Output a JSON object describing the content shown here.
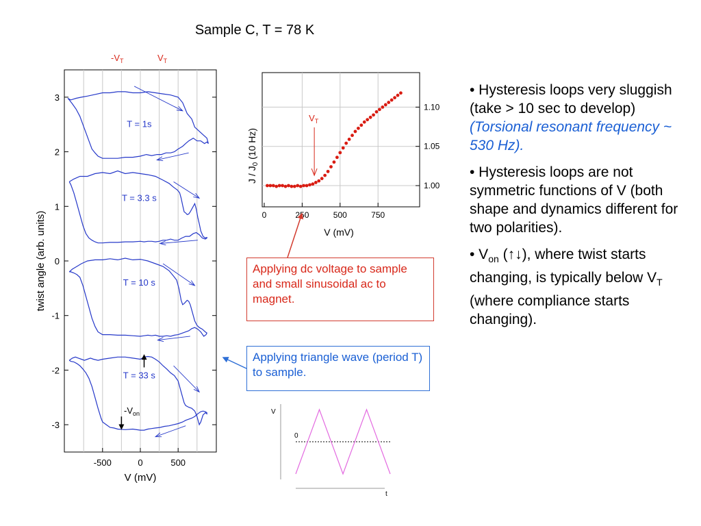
{
  "slide": {
    "title": "Sample C,  T = 78 K"
  },
  "colors": {
    "loop": "#2538c9",
    "marker": "#d91c12",
    "text_red": "#d8281a",
    "text_blue": "#1a5fd4",
    "triangle": "#e36ae0",
    "grid": "#c8c8c8"
  },
  "left_chart": {
    "xlabel": "V  (mV)",
    "ylabel": "twist angle   (arb. units)",
    "x_ticks": [
      "-500",
      "0",
      "500"
    ],
    "y_ticks": [
      "3",
      "2",
      "1",
      "0",
      "-1",
      "-2",
      "-3"
    ],
    "top_markers": {
      "neg_vt_prefix": "-V",
      "neg_vt_sub": "T",
      "vt_main": "V",
      "vt_sub": "T"
    },
    "von_main": "-V",
    "von_sub": "on"
  },
  "right_chart": {
    "xlabel": "V   (mV)",
    "ylabel_main": "J / J",
    "ylabel_sub": "0",
    "ylabel_freq": "(10 Hz)",
    "x_ticks": [
      "0",
      "250",
      "500",
      "750"
    ],
    "y_ticks": [
      "1.10",
      "1.05",
      "1.00"
    ],
    "vt_main": "V",
    "vt_sub": "T"
  },
  "triangle_chart": {
    "ylabel": "V",
    "xlabel": "t",
    "zero_label": "0"
  },
  "chart_data": [
    {
      "type": "line",
      "title": "",
      "xlabel": "V  (mV)",
      "ylabel": "twist angle   (arb. units)",
      "xlim": [
        -1000,
        1000
      ],
      "ylim": [
        -3.5,
        3.5
      ],
      "x_ticks": [
        -500,
        0,
        500
      ],
      "y_ticks": [
        -3,
        -2,
        -1,
        0,
        1,
        2,
        3
      ],
      "grid_x": [
        -750,
        -500,
        -250,
        0,
        250,
        500,
        750
      ],
      "series": [
        {
          "name": "T = 1s",
          "label_at": [
            -15,
            2.45
          ],
          "arrows": [
            {
              "from": [
                -80,
                3.2
              ],
              "to": [
                560,
                2.75
              ]
            },
            {
              "from": [
                640,
                1.98
              ],
              "to": [
                220,
                1.85
              ]
            }
          ],
          "x": [
            -960,
            -920,
            -850,
            -780,
            -700,
            -600,
            -500,
            -400,
            -300,
            -200,
            -100,
            0,
            100,
            200,
            300,
            400,
            500,
            560,
            620,
            680,
            720,
            760,
            800,
            840,
            880,
            900,
            880,
            850,
            800,
            750,
            700,
            640,
            600,
            560,
            500,
            450,
            400,
            340,
            280,
            220,
            150,
            80,
            0,
            -100,
            -200,
            -300,
            -400,
            -500,
            -560,
            -600,
            -640,
            -680,
            -720,
            -760,
            -800,
            -850,
            -900,
            -940,
            -960
          ],
          "y": [
            2.98,
            2.95,
            2.98,
            3.0,
            3.02,
            3.05,
            3.08,
            3.08,
            3.1,
            3.1,
            3.08,
            3.08,
            3.1,
            3.08,
            3.06,
            3.04,
            3.0,
            2.9,
            2.7,
            2.6,
            2.45,
            2.4,
            2.35,
            2.3,
            2.25,
            2.15,
            2.18,
            2.15,
            2.2,
            2.2,
            2.25,
            2.2,
            2.15,
            2.1,
            2.05,
            2.0,
            1.98,
            1.98,
            1.95,
            1.95,
            1.93,
            1.95,
            1.92,
            1.9,
            1.9,
            1.88,
            1.88,
            1.88,
            1.92,
            1.98,
            2.05,
            2.2,
            2.35,
            2.5,
            2.65,
            2.78,
            2.88,
            2.95,
            2.98
          ]
        },
        {
          "name": "T = 3.3 s",
          "label_at": [
            -15,
            1.1
          ],
          "arrows": [
            {
              "from": [
                440,
                1.45
              ],
              "to": [
                780,
                1.15
              ]
            },
            {
              "from": [
                760,
                0.38
              ],
              "to": [
                260,
                0.32
              ]
            }
          ],
          "x": [
            -940,
            -880,
            -800,
            -700,
            -600,
            -500,
            -400,
            -300,
            -200,
            -100,
            0,
            100,
            200,
            300,
            380,
            440,
            490,
            520,
            540,
            560,
            580,
            600,
            620,
            640,
            660,
            680,
            700,
            720,
            740,
            760,
            780,
            800,
            830,
            860,
            880,
            880,
            860,
            820,
            780,
            740,
            700,
            650,
            600,
            550,
            500,
            450,
            400,
            350,
            300,
            250,
            200,
            150,
            100,
            50,
            0,
            -100,
            -200,
            -300,
            -400,
            -500,
            -560,
            -600,
            -640,
            -680,
            -720,
            -760,
            -800,
            -840,
            -880,
            -920,
            -940
          ],
          "y": [
            1.45,
            1.5,
            1.55,
            1.55,
            1.6,
            1.62,
            1.6,
            1.65,
            1.6,
            1.62,
            1.6,
            1.58,
            1.55,
            1.48,
            1.42,
            1.35,
            1.3,
            1.25,
            1.15,
            1.02,
            0.9,
            0.88,
            0.85,
            0.86,
            0.9,
            0.95,
            1.0,
            1.05,
            0.95,
            0.8,
            0.68,
            0.55,
            0.45,
            0.42,
            0.43,
            0.42,
            0.4,
            0.42,
            0.48,
            0.52,
            0.5,
            0.45,
            0.45,
            0.42,
            0.38,
            0.38,
            0.4,
            0.38,
            0.38,
            0.36,
            0.35,
            0.36,
            0.36,
            0.35,
            0.36,
            0.35,
            0.35,
            0.34,
            0.34,
            0.33,
            0.33,
            0.35,
            0.38,
            0.42,
            0.5,
            0.65,
            0.85,
            1.05,
            1.25,
            1.4,
            1.45
          ]
        },
        {
          "name": "T = 10 s",
          "label_at": [
            -15,
            -0.45
          ],
          "arrows": [
            {
              "from": [
                300,
                -0.05
              ],
              "to": [
                720,
                -0.45
              ]
            },
            {
              "from": [
                660,
                -1.38
              ],
              "to": [
                230,
                -1.45
              ]
            }
          ],
          "x": [
            -940,
            -900,
            -840,
            -780,
            -700,
            -600,
            -500,
            -400,
            -300,
            -200,
            -100,
            0,
            100,
            200,
            300,
            380,
            440,
            480,
            510,
            540,
            560,
            580,
            600,
            620,
            640,
            660,
            680,
            700,
            720,
            750,
            780,
            820,
            860,
            880,
            870,
            840,
            800,
            760,
            720,
            680,
            640,
            600,
            560,
            500,
            450,
            400,
            350,
            300,
            250,
            200,
            150,
            100,
            50,
            0,
            -100,
            -200,
            -300,
            -400,
            -500,
            -560,
            -600,
            -640,
            -680,
            -720,
            -760,
            -800,
            -840,
            -880,
            -920,
            -940
          ],
          "y": [
            -0.2,
            -0.15,
            -0.1,
            -0.05,
            0.0,
            0.02,
            0.02,
            0.04,
            0.02,
            0.05,
            0.02,
            0.03,
            0.0,
            -0.05,
            -0.1,
            -0.18,
            -0.28,
            -0.35,
            -0.5,
            -0.72,
            -0.8,
            -0.78,
            -0.75,
            -0.72,
            -0.74,
            -0.8,
            -0.9,
            -1.0,
            -1.1,
            -1.18,
            -1.22,
            -1.25,
            -1.3,
            -1.32,
            -1.35,
            -1.38,
            -1.3,
            -1.25,
            -1.22,
            -1.24,
            -1.28,
            -1.3,
            -1.32,
            -1.35,
            -1.36,
            -1.38,
            -1.37,
            -1.38,
            -1.38,
            -1.36,
            -1.37,
            -1.36,
            -1.37,
            -1.38,
            -1.37,
            -1.36,
            -1.36,
            -1.35,
            -1.35,
            -1.3,
            -1.2,
            -1.05,
            -0.85,
            -0.65,
            -0.45,
            -0.3,
            -0.25,
            -0.22,
            -0.2,
            -0.2
          ]
        },
        {
          "name": "T = 33 s",
          "label_at": [
            -15,
            -2.15
          ],
          "arrows": [
            {
              "from": [
                440,
                -1.92
              ],
              "to": [
                780,
                -2.4
              ]
            },
            {
              "from": [
                600,
                -3.02
              ],
              "to": [
                200,
                -3.22
              ]
            }
          ],
          "x": [
            -940,
            -900,
            -860,
            -820,
            -780,
            -740,
            -700,
            -660,
            -620,
            -560,
            -500,
            -400,
            -300,
            -200,
            -100,
            0,
            50,
            100,
            150,
            200,
            250,
            300,
            350,
            400,
            450,
            500,
            530,
            560,
            580,
            600,
            640,
            680,
            720,
            750,
            780,
            800,
            830,
            860,
            880,
            880,
            860,
            830,
            800,
            760,
            720,
            680,
            640,
            600,
            560,
            500,
            440,
            380,
            320,
            260,
            200,
            150,
            100,
            50,
            0,
            -100,
            -200,
            -300,
            -350,
            -400,
            -450,
            -500,
            -520,
            -560,
            -600,
            -640,
            -680,
            -720,
            -760,
            -800,
            -840,
            -880,
            -920,
            -940
          ],
          "y": [
            -1.82,
            -1.78,
            -1.76,
            -1.78,
            -1.8,
            -1.82,
            -1.8,
            -1.78,
            -1.8,
            -1.82,
            -1.8,
            -1.78,
            -1.76,
            -1.76,
            -1.78,
            -1.8,
            -1.76,
            -1.75,
            -1.76,
            -1.8,
            -1.85,
            -1.92,
            -1.98,
            -2.05,
            -2.1,
            -2.2,
            -2.35,
            -2.5,
            -2.6,
            -2.65,
            -2.68,
            -2.7,
            -2.75,
            -2.85,
            -3.0,
            -2.95,
            -2.82,
            -2.78,
            -2.8,
            -2.78,
            -2.76,
            -2.75,
            -2.76,
            -2.8,
            -2.85,
            -2.88,
            -2.9,
            -2.92,
            -2.95,
            -2.98,
            -3.0,
            -3.02,
            -3.03,
            -3.05,
            -3.06,
            -3.07,
            -3.08,
            -3.1,
            -3.1,
            -3.08,
            -3.09,
            -3.08,
            -3.06,
            -3.05,
            -3.0,
            -2.95,
            -2.88,
            -2.7,
            -2.5,
            -2.3,
            -2.15,
            -2.05,
            -1.98,
            -1.92,
            -1.88,
            -1.85,
            -1.84,
            -1.82
          ]
        }
      ],
      "markers": {
        "vlines": [
          {
            "label": "-VT",
            "x": -250
          },
          {
            "label": "VT",
            "x": 250
          }
        ],
        "up_arrow": {
          "x": 50,
          "y_from": -1.95,
          "y_to": -1.72
        },
        "down_arrow": {
          "label": "-Von",
          "x": -250,
          "y_from": -2.85,
          "y_to": -3.08
        }
      }
    },
    {
      "type": "scatter",
      "title": "",
      "xlabel": "V   (mV)",
      "ylabel": "J / J0   (10 Hz)",
      "xlim": [
        -20,
        1000
      ],
      "ylim": [
        0.975,
        1.13
      ],
      "x_ticks": [
        0,
        250,
        500,
        750
      ],
      "y_ticks": [
        1.0,
        1.05,
        1.1
      ],
      "grid_x": [
        250,
        500,
        750
      ],
      "grid_y": [
        1.0,
        1.05,
        1.1
      ],
      "series": [
        {
          "name": "",
          "x": [
            20,
            40,
            60,
            80,
            100,
            120,
            140,
            160,
            180,
            200,
            220,
            240,
            260,
            280,
            300,
            320,
            340,
            360,
            380,
            400,
            420,
            440,
            460,
            480,
            500,
            520,
            540,
            560,
            580,
            600,
            620,
            640,
            660,
            680,
            700,
            720,
            740,
            760,
            780,
            800,
            820,
            840,
            860,
            880,
            900
          ],
          "y": [
            1.0,
            1.0,
            1.0,
            0.999,
            1.0,
            1.0,
            0.999,
            1.0,
            0.999,
            0.999,
            1.0,
            0.999,
            1.0,
            1.0,
            1.001,
            1.002,
            1.004,
            1.006,
            1.009,
            1.013,
            1.018,
            1.024,
            1.03,
            1.036,
            1.042,
            1.048,
            1.054,
            1.059,
            1.064,
            1.069,
            1.073,
            1.077,
            1.081,
            1.084,
            1.087,
            1.09,
            1.094,
            1.097,
            1.1,
            1.103,
            1.106,
            1.109,
            1.112,
            1.115,
            1.118
          ]
        }
      ],
      "vt_arrow": {
        "label": "VT",
        "x": 330,
        "y_from": 1.085,
        "y_to": 1.013
      }
    },
    {
      "type": "line",
      "title": "",
      "xlabel": "t",
      "ylabel": "V",
      "series": [
        {
          "name": "",
          "t": [
            0,
            1,
            2,
            3,
            4
          ],
          "v": [
            -1,
            1,
            -1,
            1,
            -1
          ]
        }
      ],
      "zero_line": true
    }
  ],
  "text": {
    "dc_box": "Applying dc voltage to sample and small sinusoidal ac to magnet.",
    "tri_box": "Applying triangle wave (period T) to sample.",
    "bullet1_main": "• Hysteresis loops very sluggish (take > 10 sec to develop)  ",
    "bullet1_italic": "(Torsional resonant frequency ~ 530 Hz).",
    "bullet2": "• Hysteresis loops are not symmetric functions of V (both shape and dynamics different for two polarities).",
    "bullet3_a": "• V",
    "bullet3_sub": "on",
    "bullet3_b": " (↑↓), where twist starts changing, is typically below V",
    "bullet3_sub2": "T",
    "bullet3_c": " (where compliance starts changing)."
  }
}
